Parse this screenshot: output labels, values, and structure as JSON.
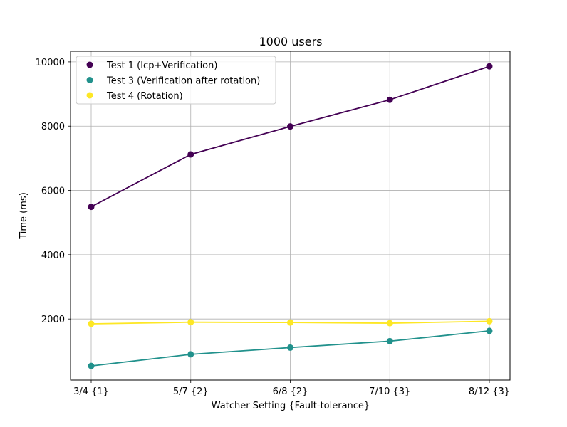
{
  "chart_data": {
    "type": "line",
    "title": "1000 users",
    "xlabel": "Watcher Setting {Fault-tolerance}",
    "ylabel": "Time (ms)",
    "categories": [
      "3/4 {1}",
      "5/7 {2}",
      "6/8 {2}",
      "7/10 {3}",
      "8/12 {3}"
    ],
    "ylim": [
      100,
      10330
    ],
    "yticks": [
      2000,
      4000,
      6000,
      8000,
      10000
    ],
    "grid": true,
    "legend_position": "top-left",
    "series": [
      {
        "name": "Test 1 (Icp+Verification)",
        "color": "#440154",
        "values": [
          5490,
          7120,
          7990,
          8820,
          9860
        ]
      },
      {
        "name": "Test 3 (Verification after rotation)",
        "color": "#21918c",
        "values": [
          540,
          900,
          1110,
          1310,
          1630
        ]
      },
      {
        "name": "Test 4 (Rotation)",
        "color": "#fde725",
        "values": [
          1850,
          1900,
          1890,
          1870,
          1930
        ]
      }
    ]
  }
}
